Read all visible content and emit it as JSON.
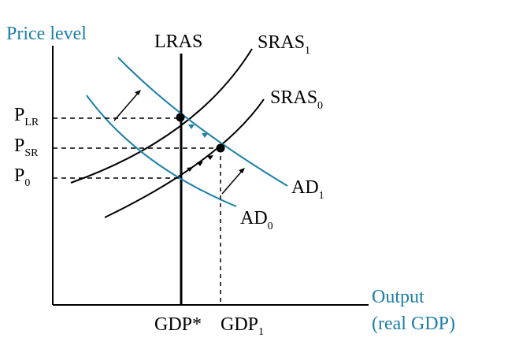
{
  "diagram": {
    "y_axis_label": "Price level",
    "x_axis_label_line1": "Output",
    "x_axis_label_line2": "(real GDP)",
    "curves": {
      "lras": {
        "label": "LRAS"
      },
      "sras1": {
        "label": "SRAS",
        "subscript": "1"
      },
      "sras0": {
        "label": "SRAS",
        "subscript": "0"
      },
      "ad1": {
        "label": "AD",
        "subscript": "1"
      },
      "ad0": {
        "label": "AD",
        "subscript": "0"
      }
    },
    "price_levels": [
      {
        "label": "P",
        "subscript": "LR"
      },
      {
        "label": "P",
        "subscript": "SR"
      },
      {
        "label": "P",
        "subscript": "0"
      }
    ],
    "output_levels": [
      {
        "label": "GDP*",
        "subscript": ""
      },
      {
        "label": "GDP",
        "subscript": "1"
      }
    ],
    "colors": {
      "axis": "#000000",
      "ad_curves": "#1b7fa6",
      "axis_labels": "#1b7fa6"
    }
  }
}
